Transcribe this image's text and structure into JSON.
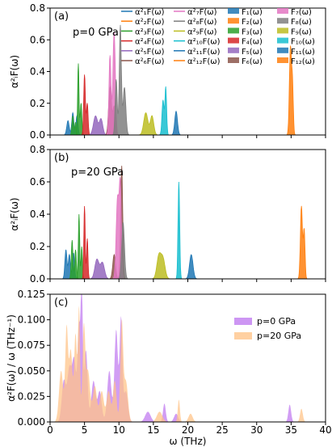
{
  "colors": {
    "c1": "#1f77b4",
    "c2": "#ff7f0e",
    "c3": "#2ca02c",
    "c4": "#d62728",
    "c5": "#9467bd",
    "c6": "#8c564b",
    "c7": "#e377c2",
    "c8": "#7f7f7f",
    "c9": "#bcbd22",
    "c10": "#17becf",
    "c11": "#1f77b4",
    "c12": "#ff7f0e",
    "p0": "#c17cf0",
    "p20": "#ffc48a"
  },
  "chart_data": [
    {
      "type": "area",
      "panel": "(a)",
      "annotation": "p=0 GPa",
      "ylabel": "α²ᵢF(ω)",
      "ylim": [
        0,
        0.8
      ],
      "yticks": [
        "0.0",
        "0.2",
        "0.4",
        "0.6",
        "0.8"
      ],
      "xlim": [
        0,
        40
      ],
      "legend_lines": [
        "α²₁F(ω)",
        "α²₂F(ω)",
        "α²₃F(ω)",
        "α²₄F(ω)",
        "α²₅F(ω)",
        "α²₆F(ω)",
        "α²₇F(ω)",
        "α²₈F(ω)",
        "α²₉F(ω)",
        "α²₁₀F(ω)",
        "α²₁₁F(ω)",
        "α²₁₂F(ω)"
      ],
      "legend_fills": [
        "F₁(ω)",
        "F₂(ω)",
        "F₃(ω)",
        "F₄(ω)",
        "F₅(ω)",
        "F₆(ω)",
        "F₇(ω)",
        "F₈(ω)",
        "F₉(ω)",
        "F₁₀(ω)",
        "F₁₁(ω)",
        "F₁₂(ω)"
      ],
      "series": [
        {
          "color": "c1",
          "peaks": [
            [
              2.6,
              0.09,
              0.18
            ],
            [
              3.3,
              0.14,
              0.15
            ],
            [
              3.9,
              0.12,
              0.15
            ]
          ]
        },
        {
          "color": "c3",
          "peaks": [
            [
              3.3,
              0.12,
              0.12
            ],
            [
              3.7,
              0.08,
              0.1
            ]
          ]
        },
        {
          "color": "c3",
          "peaks": [
            [
              4.1,
              0.45,
              0.1
            ],
            [
              4.5,
              0.2,
              0.12
            ]
          ]
        },
        {
          "color": "c4",
          "peaks": [
            [
              5.0,
              0.38,
              0.12
            ],
            [
              5.4,
              0.2,
              0.12
            ]
          ]
        },
        {
          "color": "c5",
          "peaks": [
            [
              6.6,
              0.12,
              0.3
            ],
            [
              7.4,
              0.1,
              0.25
            ]
          ]
        },
        {
          "color": "c6",
          "peaks": [
            [
              8.7,
              0.3,
              0.2
            ],
            [
              9.3,
              0.18,
              0.2
            ]
          ]
        },
        {
          "color": "c7",
          "peaks": [
            [
              8.7,
              0.5,
              0.15
            ],
            [
              9.3,
              0.65,
              0.18
            ]
          ]
        },
        {
          "color": "c8",
          "peaks": [
            [
              9.6,
              0.35,
              0.15
            ],
            [
              10.2,
              0.69,
              0.15
            ],
            [
              10.8,
              0.3,
              0.2
            ]
          ]
        },
        {
          "color": "c9",
          "peaks": [
            [
              13.9,
              0.14,
              0.3
            ],
            [
              14.8,
              0.12,
              0.25
            ]
          ]
        },
        {
          "color": "c10",
          "peaks": [
            [
              16.4,
              0.22,
              0.15
            ],
            [
              16.8,
              0.3,
              0.12
            ]
          ]
        },
        {
          "color": "c11",
          "peaks": [
            [
              18.3,
              0.15,
              0.2
            ]
          ]
        },
        {
          "color": "c12",
          "peaks": [
            [
              34.9,
              0.55,
              0.15
            ],
            [
              35.2,
              0.3,
              0.12
            ]
          ]
        }
      ]
    },
    {
      "type": "area",
      "panel": "(b)",
      "annotation": "p=20 GPa",
      "ylabel": "α²ᵢF(ω)",
      "ylim": [
        0,
        0.8
      ],
      "yticks": [
        "0.0",
        "0.2",
        "0.4",
        "0.6",
        "0.8"
      ],
      "xlim": [
        0,
        40
      ],
      "series": [
        {
          "color": "c1",
          "peaks": [
            [
              2.3,
              0.18,
              0.15
            ],
            [
              2.8,
              0.15,
              0.15
            ],
            [
              3.4,
              0.16,
              0.15
            ]
          ]
        },
        {
          "color": "c3",
          "peaks": [
            [
              3.2,
              0.24,
              0.12
            ],
            [
              3.7,
              0.18,
              0.12
            ]
          ]
        },
        {
          "color": "c3",
          "peaks": [
            [
              4.2,
              0.4,
              0.1
            ],
            [
              4.6,
              0.2,
              0.1
            ]
          ]
        },
        {
          "color": "c4",
          "peaks": [
            [
              5.0,
              0.45,
              0.1
            ],
            [
              5.4,
              0.25,
              0.1
            ]
          ]
        },
        {
          "color": "c5",
          "peaks": [
            [
              6.8,
              0.12,
              0.3
            ],
            [
              7.6,
              0.1,
              0.3
            ]
          ]
        },
        {
          "color": "c6",
          "peaks": [
            [
              9.3,
              0.15,
              0.2
            ],
            [
              10.4,
              0.7,
              0.15
            ]
          ]
        },
        {
          "color": "c7",
          "peaks": [
            [
              9.8,
              0.5,
              0.2
            ],
            [
              10.2,
              0.55,
              0.15
            ]
          ]
        },
        {
          "color": "c8",
          "peaks": [
            [
              10.6,
              0.35,
              0.2
            ]
          ]
        },
        {
          "color": "c9",
          "peaks": [
            [
              15.8,
              0.14,
              0.3
            ],
            [
              16.4,
              0.12,
              0.3
            ]
          ]
        },
        {
          "color": "c10",
          "peaks": [
            [
              18.7,
              0.6,
              0.12
            ]
          ]
        },
        {
          "color": "c11",
          "peaks": [
            [
              20.5,
              0.15,
              0.25
            ]
          ]
        },
        {
          "color": "c12",
          "peaks": [
            [
              36.5,
              0.45,
              0.15
            ],
            [
              36.9,
              0.3,
              0.12
            ]
          ]
        }
      ]
    },
    {
      "type": "area",
      "panel": "(c)",
      "ylabel": "α²F(ω) / ω (THz⁻¹)",
      "xlabel": "ω (THz)",
      "ylim": [
        0,
        0.125
      ],
      "yticks": [
        "0.000",
        "0.025",
        "0.050",
        "0.075",
        "0.100",
        "0.125"
      ],
      "xticks": [
        "0",
        "5",
        "10",
        "15",
        "20",
        "25",
        "30",
        "35",
        "40"
      ],
      "xlim": [
        0,
        40
      ],
      "legend": [
        "p=0 GPa",
        "p=20 GPa"
      ],
      "series": [
        {
          "name": "p=0 GPa",
          "color": "p0",
          "peaks": [
            [
              2.0,
              0.04,
              0.3
            ],
            [
              2.8,
              0.05,
              0.3
            ],
            [
              3.5,
              0.06,
              0.3
            ],
            [
              4.2,
              0.09,
              0.2
            ],
            [
              4.6,
              0.125,
              0.15
            ],
            [
              5.2,
              0.07,
              0.25
            ],
            [
              6.3,
              0.04,
              0.3
            ],
            [
              7.2,
              0.03,
              0.3
            ],
            [
              8.6,
              0.05,
              0.3
            ],
            [
              9.6,
              0.09,
              0.25
            ],
            [
              10.3,
              0.1,
              0.2
            ],
            [
              11.0,
              0.03,
              0.3
            ],
            [
              14.2,
              0.01,
              0.4
            ],
            [
              16.6,
              0.018,
              0.2
            ],
            [
              18.3,
              0.008,
              0.3
            ],
            [
              34.8,
              0.017,
              0.2
            ]
          ]
        },
        {
          "name": "p=20 GPa",
          "color": "p20",
          "peaks": [
            [
              1.6,
              0.05,
              0.3
            ],
            [
              2.4,
              0.09,
              0.2
            ],
            [
              3.0,
              0.07,
              0.25
            ],
            [
              3.7,
              0.085,
              0.2
            ],
            [
              4.2,
              0.11,
              0.15
            ],
            [
              4.9,
              0.09,
              0.2
            ],
            [
              5.5,
              0.05,
              0.3
            ],
            [
              6.5,
              0.035,
              0.3
            ],
            [
              7.5,
              0.03,
              0.3
            ],
            [
              8.5,
              0.03,
              0.3
            ],
            [
              9.4,
              0.04,
              0.25
            ],
            [
              10.4,
              0.095,
              0.2
            ],
            [
              11.0,
              0.04,
              0.3
            ],
            [
              15.9,
              0.01,
              0.4
            ],
            [
              18.7,
              0.022,
              0.15
            ],
            [
              20.4,
              0.008,
              0.3
            ],
            [
              36.5,
              0.013,
              0.2
            ]
          ]
        }
      ]
    }
  ]
}
